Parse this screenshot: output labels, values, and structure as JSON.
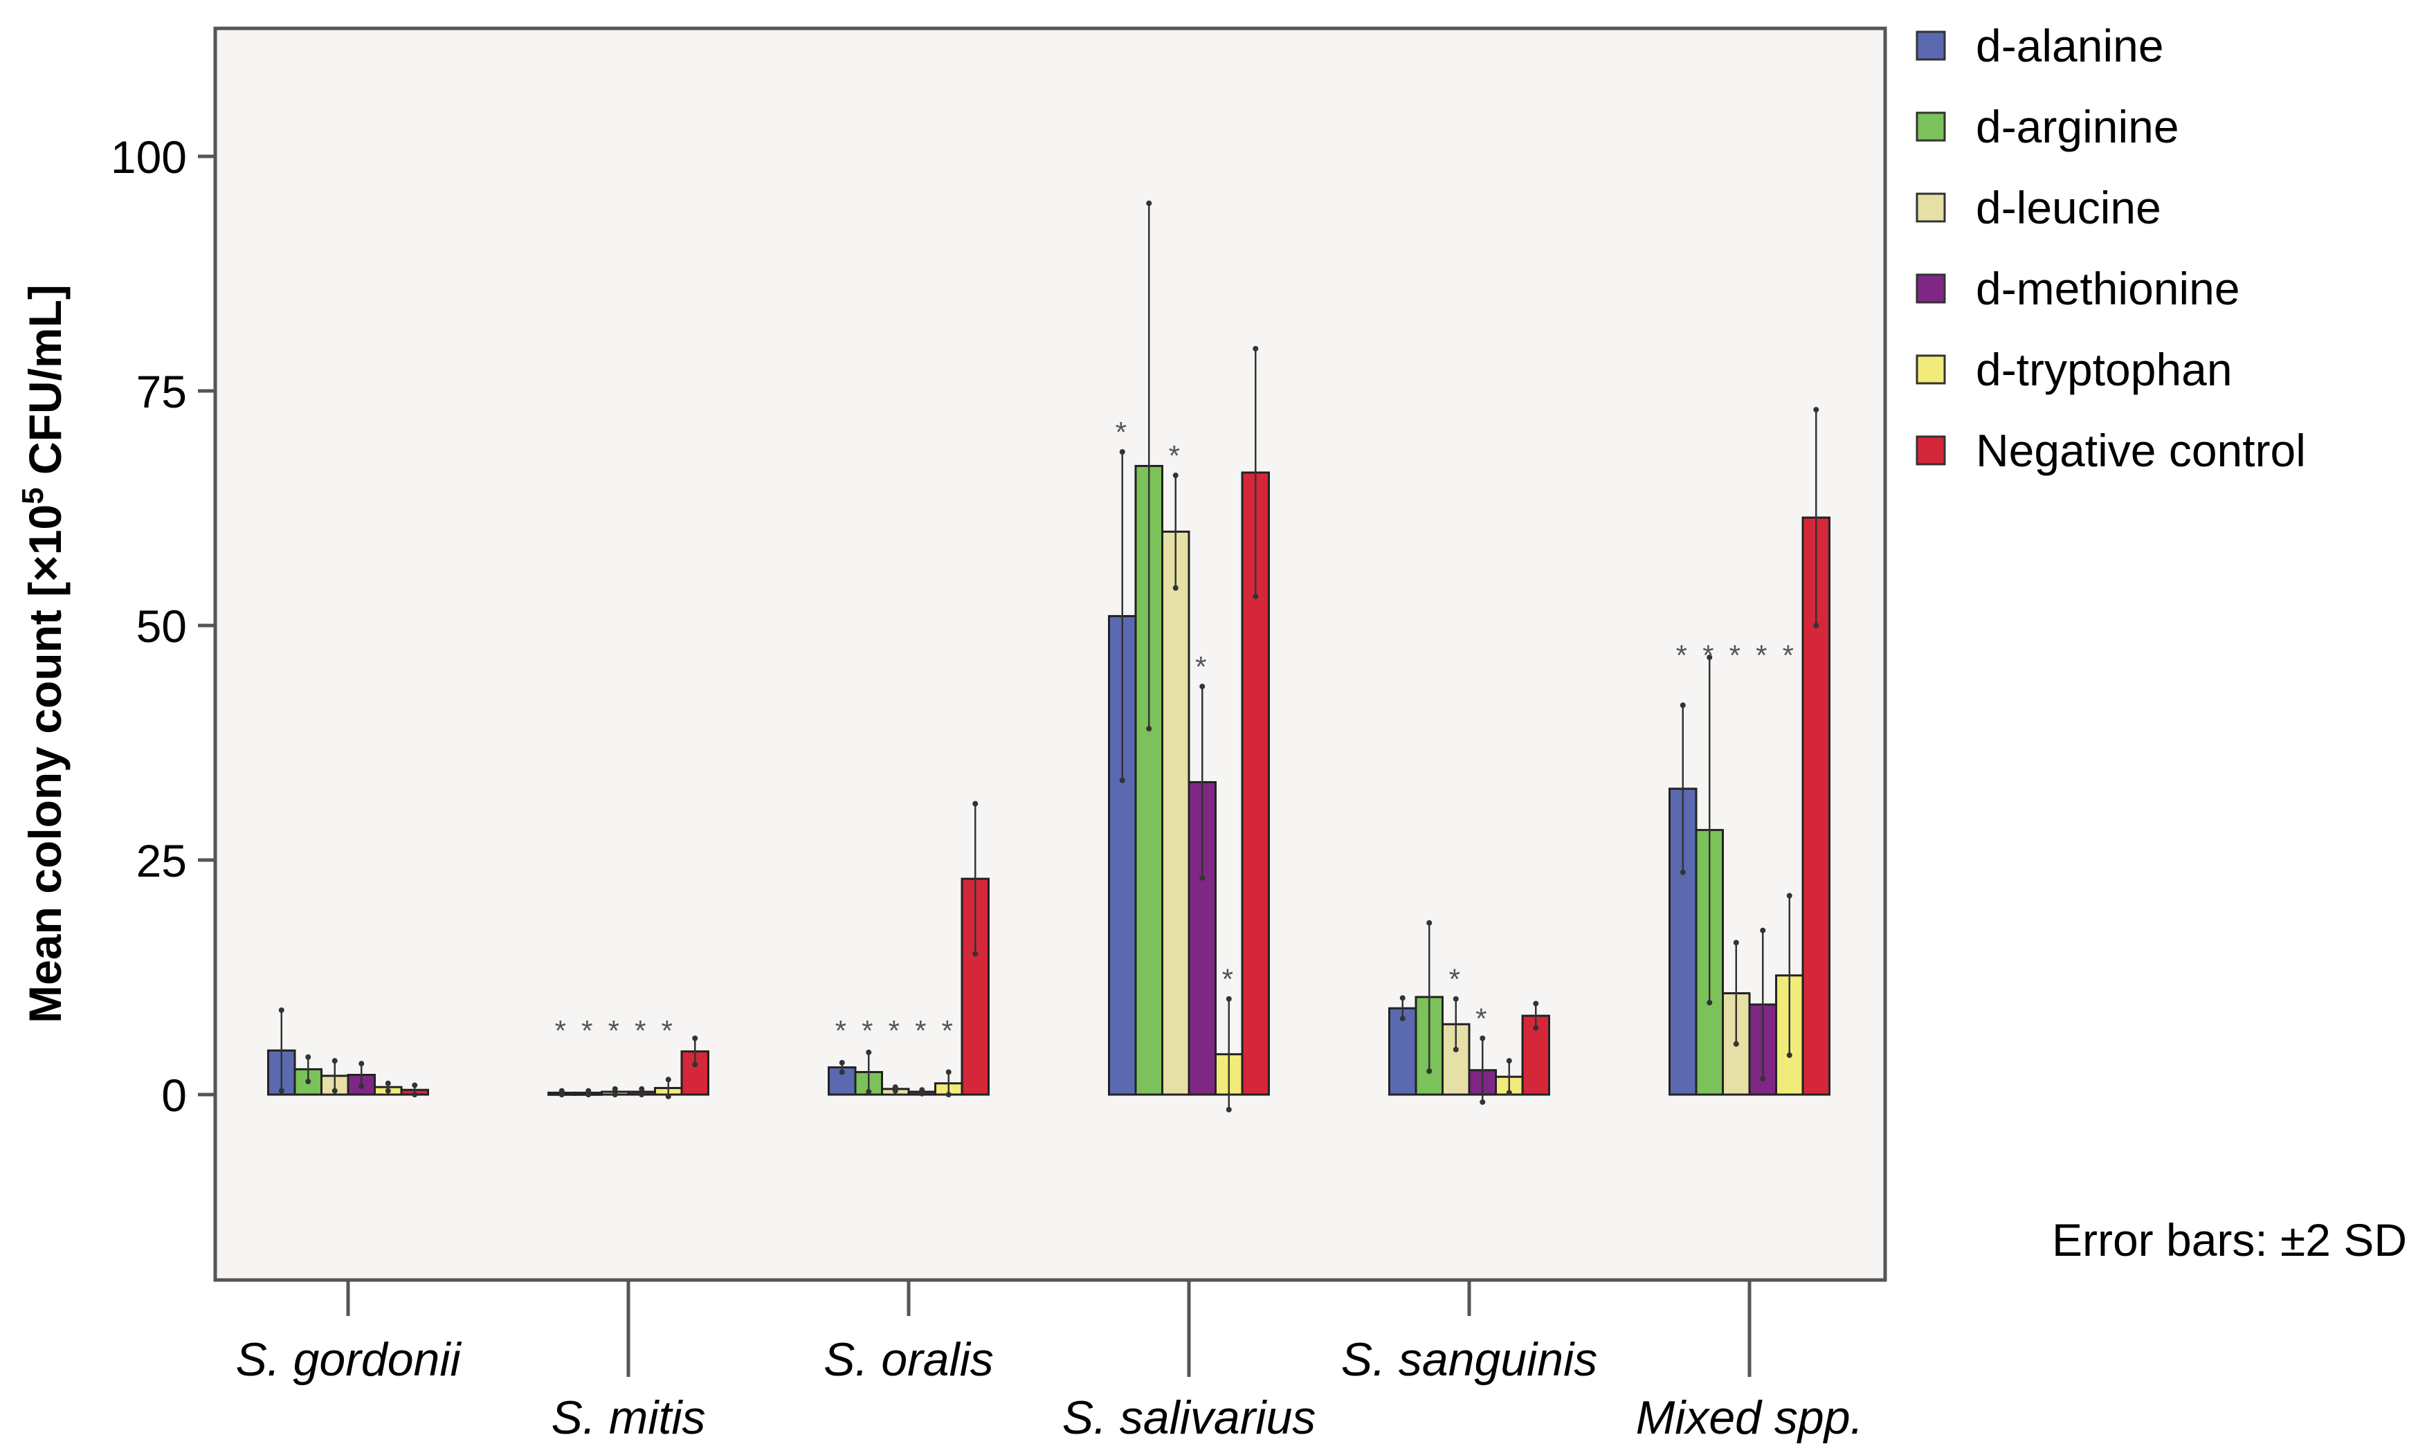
{
  "chart_data": {
    "type": "bar",
    "ylabel_main": "Mean colony count [×10",
    "ylabel_sup": "5",
    "ylabel_tail": " CFU/mL]",
    "ylim": [
      -20,
      115
    ],
    "yticks": [
      0,
      25,
      50,
      75,
      100
    ],
    "note": "Error bars: ±2 SD",
    "categories": [
      "S. gordonii",
      "S. mitis",
      "S. oralis",
      "S. salivarius",
      "S. sanguinis",
      "Mixed spp."
    ],
    "cat_italic": [
      true,
      true,
      true,
      true,
      true,
      false
    ],
    "series": [
      {
        "name": "d-alanine",
        "color": "#5a69b0",
        "values": [
          4.7,
          0.2,
          2.9,
          51,
          9.2,
          32.6
        ],
        "err": [
          4.3,
          0.2,
          0.5,
          17.5,
          1.1,
          8.9
        ]
      },
      {
        "name": "d-arginine",
        "color": "#7cc25a",
        "values": [
          2.7,
          0.2,
          2.4,
          67,
          10.4,
          28.2
        ],
        "err": [
          1.3,
          0.2,
          2.1,
          28,
          7.9,
          18.4
        ]
      },
      {
        "name": "d-leucine",
        "color": "#e6dfa6",
        "values": [
          2.0,
          0.3,
          0.6,
          60,
          7.5,
          10.8
        ],
        "err": [
          1.6,
          0.3,
          0.2,
          6,
          2.7,
          5.4
        ]
      },
      {
        "name": "d-methionine",
        "color": "#7e2785",
        "values": [
          2.1,
          0.3,
          0.3,
          33.3,
          2.6,
          9.6
        ],
        "err": [
          1.2,
          0.3,
          0.2,
          10.2,
          3.4,
          7.9
        ]
      },
      {
        "name": "d-tryptophan",
        "color": "#f1eb7a",
        "values": [
          0.8,
          0.7,
          1.2,
          4.3,
          1.9,
          12.7
        ],
        "err": [
          0.4,
          0.9,
          1.2,
          5.9,
          1.7,
          8.5
        ]
      },
      {
        "name": "Negative control",
        "color": "#d5273a",
        "values": [
          0.5,
          4.6,
          23,
          66.3,
          8.4,
          61.5
        ],
        "err": [
          0.5,
          1.4,
          8,
          13.2,
          1.3,
          11.5
        ]
      }
    ],
    "stars": [
      [],
      [
        "*",
        "*",
        "*",
        "*",
        "*"
      ],
      [
        "*",
        "*",
        "*",
        "*",
        "*"
      ],
      [
        "*",
        "",
        "*",
        "*",
        "*"
      ],
      [
        "",
        "",
        "*",
        "*",
        ""
      ],
      [
        "*",
        "*",
        "*",
        "*",
        "*"
      ]
    ]
  }
}
